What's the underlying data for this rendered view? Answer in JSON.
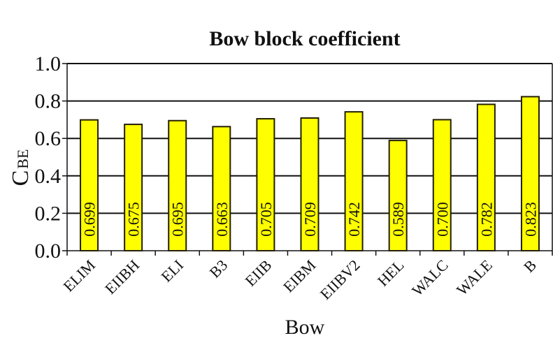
{
  "chart_data": {
    "type": "bar",
    "title": "Bow block coefficient",
    "xlabel": "Bow",
    "ylabel": "C",
    "ylabel_subscript": "BE",
    "categories": [
      "ELIM",
      "EIIBH",
      "ELI",
      "B3",
      "EIIB",
      "EIBM",
      "EIIBV2",
      "HEL",
      "WALC",
      "WALE",
      "B"
    ],
    "values": [
      0.699,
      0.675,
      0.695,
      0.663,
      0.705,
      0.709,
      0.742,
      0.589,
      0.7,
      0.782,
      0.823
    ],
    "data_labels": [
      "0.699",
      "0.675",
      "0.695",
      "0.663",
      "0.705",
      "0.709",
      "0.742",
      "0.589",
      "0.700",
      "0.782",
      "0.823"
    ],
    "ylim": [
      0,
      1.0
    ],
    "yticks": [
      "0.0",
      "0.2",
      "0.4",
      "0.6",
      "0.8",
      "1.0"
    ],
    "grid": "horizontal",
    "bar_color": "#ffff00",
    "bar_edge_color": "#231f00"
  }
}
